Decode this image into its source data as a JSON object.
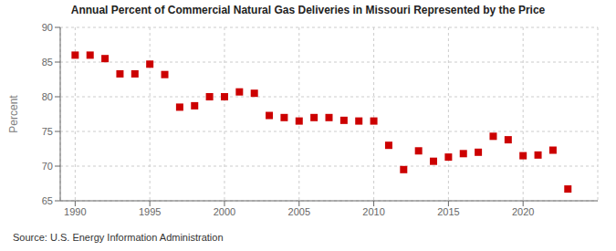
{
  "chart_data": {
    "type": "scatter",
    "title": "Annual Percent of Commercial Natural Gas Deliveries in Missouri Represented by the Price",
    "ylabel": "Percent",
    "source": "Source: U.S. Energy Information Administration",
    "x": [
      1990,
      1991,
      1992,
      1993,
      1994,
      1995,
      1996,
      1997,
      1998,
      1999,
      2000,
      2001,
      2002,
      2003,
      2004,
      2005,
      2006,
      2007,
      2008,
      2009,
      2010,
      2011,
      2012,
      2013,
      2014,
      2015,
      2016,
      2017,
      2018,
      2019,
      2020,
      2021,
      2022,
      2023
    ],
    "values": [
      86.0,
      86.0,
      85.5,
      83.3,
      83.3,
      84.7,
      83.2,
      78.5,
      78.7,
      80.0,
      80.0,
      80.7,
      80.5,
      77.3,
      77.0,
      76.5,
      77.0,
      77.0,
      76.6,
      76.5,
      76.5,
      73.0,
      69.5,
      72.2,
      70.7,
      71.3,
      71.8,
      72.0,
      74.3,
      73.8,
      71.5,
      71.6,
      72.3,
      66.7
    ],
    "color": "#cc0000",
    "marker": "square",
    "xlim": [
      1989,
      2025
    ],
    "xticks": [
      1990,
      1995,
      2000,
      2005,
      2010,
      2015,
      2020
    ],
    "ylim": [
      65,
      90
    ],
    "yticks": [
      65,
      70,
      75,
      80,
      85,
      90
    ],
    "grid": true
  }
}
